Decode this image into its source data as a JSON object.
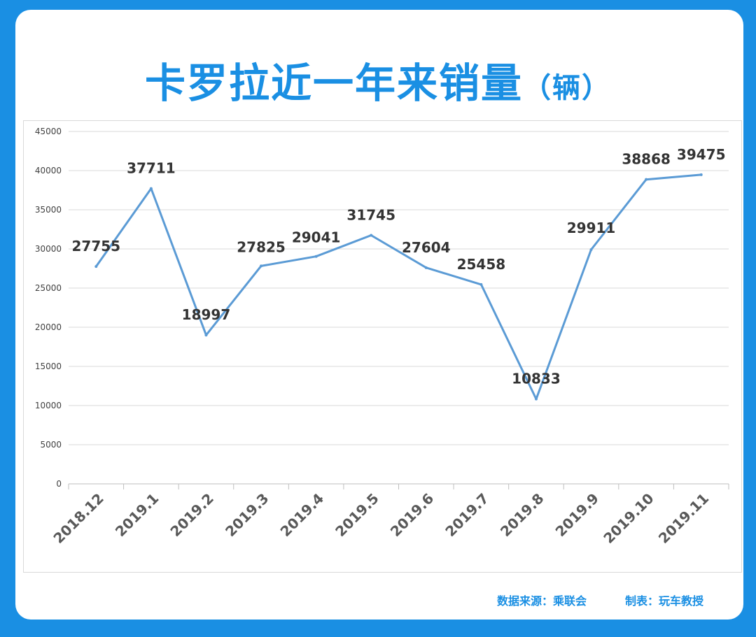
{
  "title": "卡罗拉近一年来销量",
  "title_unit": "（辆）",
  "footer": {
    "source": "数据来源：乘联会",
    "maker": "制表：玩车教授"
  },
  "colors": {
    "background": "#1a8fe3",
    "title": "#1a8fe3",
    "line": "#5b9bd5",
    "grid": "#d9d9d9"
  },
  "chart_data": {
    "type": "line",
    "categories": [
      "2018.12",
      "2019.1",
      "2019.2",
      "2019.3",
      "2019.4",
      "2019.5",
      "2019.6",
      "2019.7",
      "2019.8",
      "2019.9",
      "2019.10",
      "2019.11"
    ],
    "series": [
      {
        "values": [
          27755,
          37711,
          18997,
          27825,
          29041,
          31745,
          27604,
          25458,
          10833,
          29911,
          38868,
          39475
        ]
      }
    ],
    "ylim": [
      0,
      45000
    ],
    "yticks": [
      0,
      5000,
      10000,
      15000,
      20000,
      25000,
      30000,
      35000,
      40000,
      45000
    ],
    "grid": true,
    "legend": "none",
    "data_labels": true
  }
}
